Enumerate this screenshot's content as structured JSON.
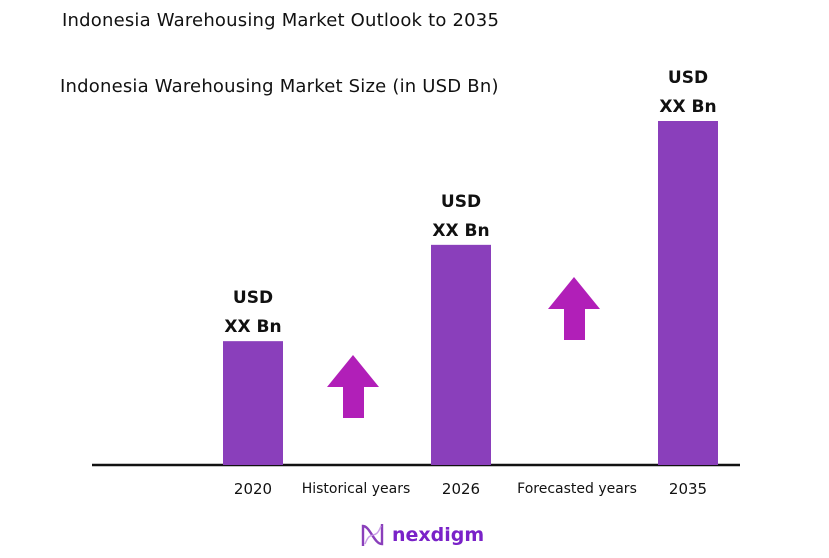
{
  "title": "Indonesia Warehousing Market Outlook to 2035",
  "chart_data": {
    "type": "bar",
    "title": "Indonesia Warehousing Market Size (in USD Bn)",
    "categories": [
      "2020",
      "2026",
      "2035"
    ],
    "values": [
      36,
      64,
      100
    ],
    "data_labels": [
      [
        "USD",
        "XX Bn"
      ],
      [
        "USD",
        "XX Bn"
      ],
      [
        "USD",
        "XX Bn"
      ]
    ],
    "period_labels": [
      "Historical years",
      "Forecasted years"
    ],
    "bar_color": "#8a3fbb",
    "arrow_color": "#b11fb8",
    "ylim": [
      0,
      100
    ],
    "grid": false
  },
  "brand": {
    "name": "nexdigm",
    "color": "#7a22c8"
  }
}
